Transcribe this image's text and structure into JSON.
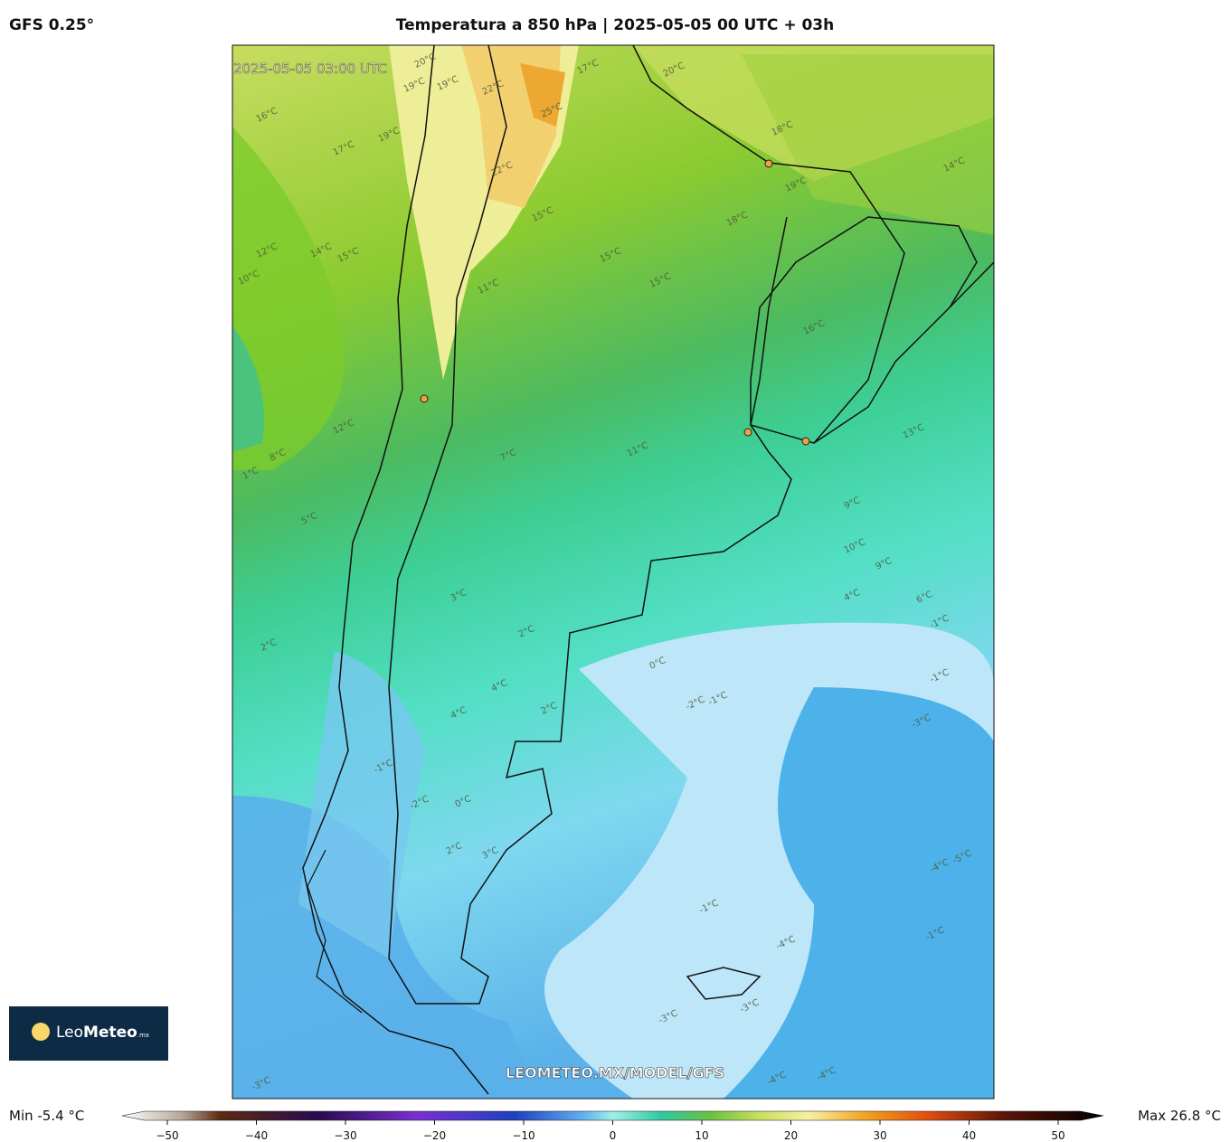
{
  "header": {
    "model": "GFS 0.25°",
    "title": "Temperatura a 850 hPa | 2025-05-05 00 UTC + 03h"
  },
  "map": {
    "valid_time": "2025-05-05 03:00 UTC",
    "watermark": "LEOMETEO.MX/MODEL/GFS",
    "contour_labels": [
      "20°C",
      "19°C",
      "19°C",
      "22°C",
      "17°C",
      "20°C",
      "16°C",
      "17°C",
      "19°C",
      "22°C",
      "25°C",
      "18°C",
      "19°C",
      "14°C",
      "18°C",
      "15°C",
      "15°C",
      "15°C",
      "12°C",
      "14°C",
      "15°C",
      "10°C",
      "11°C",
      "16°C",
      "12°C",
      "8°C",
      "7°C",
      "11°C",
      "13°C",
      "1°C",
      "5°C",
      "9°C",
      "10°C",
      "9°C",
      "4°C",
      "6°C",
      "3°C",
      "2°C",
      "2°C",
      "0°C",
      "-1°C",
      "-2°C",
      "-1°C",
      "4°C",
      "4°C",
      "2°C",
      "-3°C",
      "-1°C",
      "0°C",
      "-2°C",
      "2°C",
      "3°C",
      "-1°C",
      "-5°C",
      "-4°C",
      "-1°C",
      "-4°C",
      "-1°C",
      "-3°C",
      "-3°C",
      "-4°C",
      "-4°C",
      "-3°C"
    ]
  },
  "logo": {
    "text_a": "Leo",
    "text_b": "Meteo",
    "text_c": ".mx"
  },
  "colorbar": {
    "min_label": "Min -5.4 °C",
    "max_label": "Max 26.8 °C",
    "lim": [
      -50,
      50
    ],
    "ticks": [
      {
        "value": -50,
        "label": "−50"
      },
      {
        "value": -40,
        "label": "−40"
      },
      {
        "value": -30,
        "label": "−30"
      },
      {
        "value": -20,
        "label": "−20"
      },
      {
        "value": -10,
        "label": "−10"
      },
      0,
      10,
      20,
      30,
      40,
      50
    ]
  }
}
